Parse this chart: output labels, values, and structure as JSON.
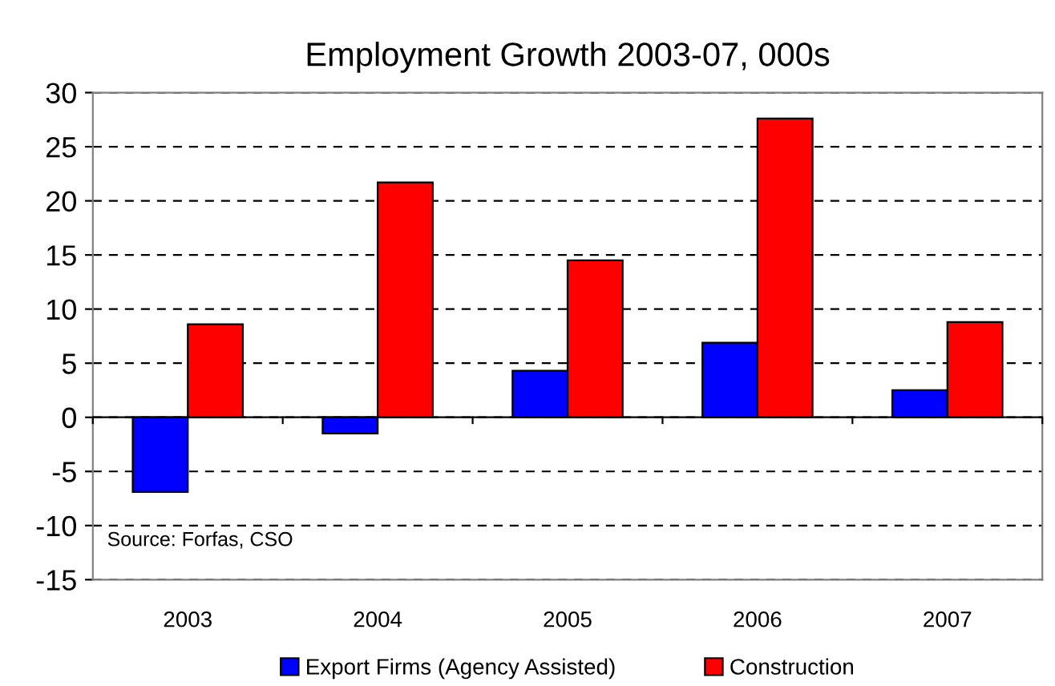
{
  "chart_data": {
    "type": "bar",
    "title": "Employment Growth 2003-07, 000s",
    "categories": [
      "2003",
      "2004",
      "2005",
      "2006",
      "2007"
    ],
    "series": [
      {
        "name": "Export Firms (Agency Assisted)",
        "color": "#0000ff",
        "values": [
          -6.9,
          -1.5,
          4.3,
          6.9,
          2.5
        ]
      },
      {
        "name": "Construction",
        "color": "#ff0000",
        "values": [
          8.6,
          21.7,
          14.5,
          27.6,
          8.8
        ]
      }
    ],
    "ylim": [
      -15,
      30
    ],
    "yticks": [
      -15,
      -10,
      -5,
      0,
      5,
      10,
      15,
      20,
      25,
      30
    ],
    "grid": "y",
    "line_style": "dashed",
    "legend": "bottom",
    "annotations": [
      "Source: Forfas, CSO"
    ]
  }
}
